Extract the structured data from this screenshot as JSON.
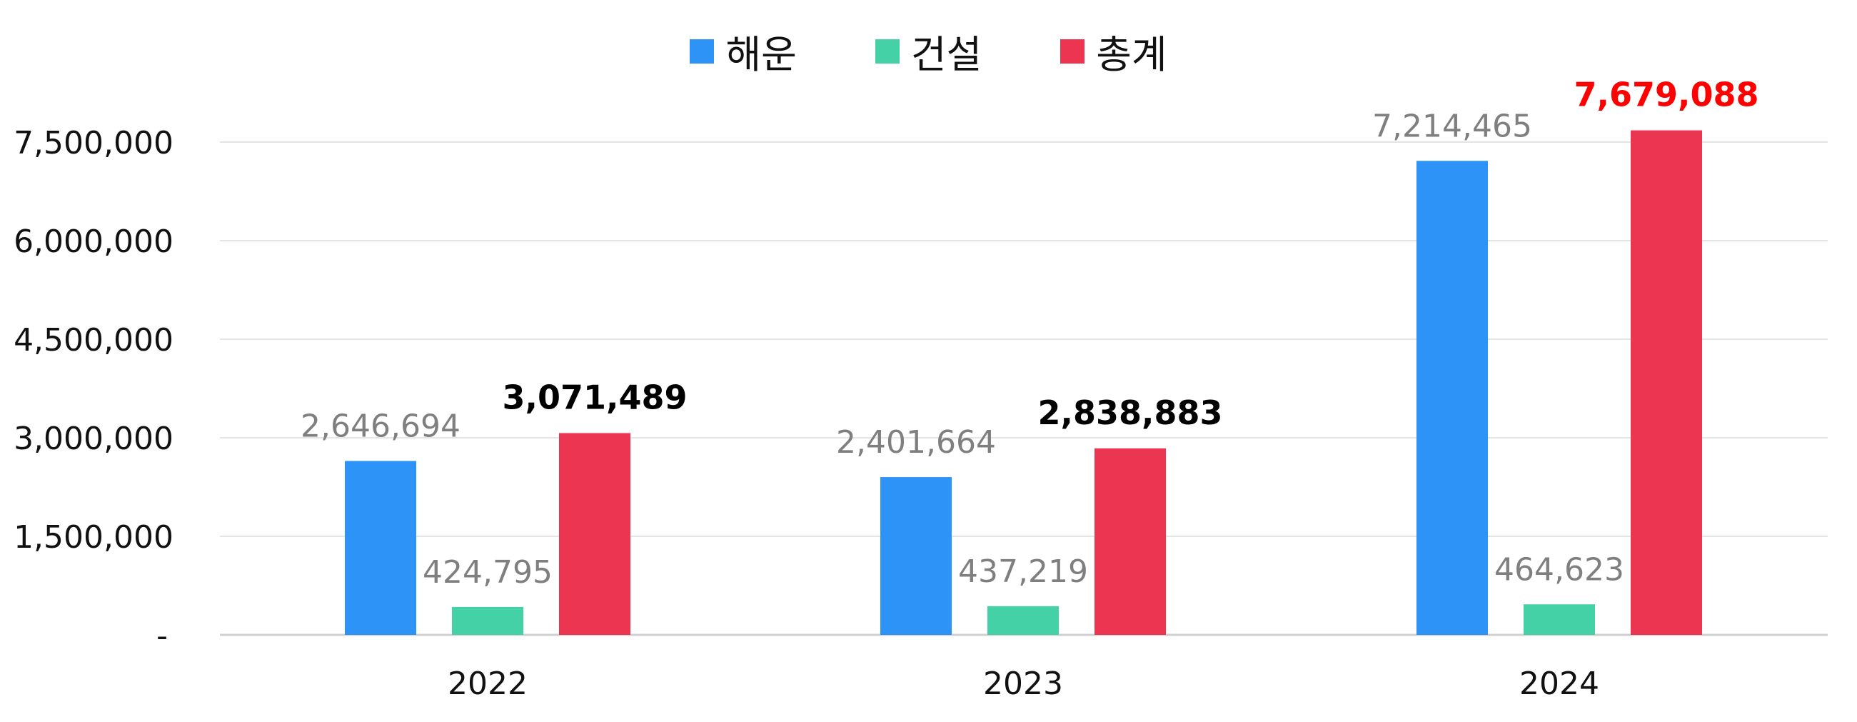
{
  "chart_data": {
    "type": "bar",
    "title": "",
    "xlabel": "",
    "ylabel": "",
    "categories": [
      "2022",
      "2023",
      "2024"
    ],
    "series": [
      {
        "name": "해운",
        "color": "#2E93F6",
        "values": [
          2646694,
          2401664,
          7214465
        ],
        "labels": [
          "2,646,694",
          "2,401,664",
          "7,214,465"
        ]
      },
      {
        "name": "건설",
        "color": "#45D1A6",
        "values": [
          424795,
          437219,
          464623
        ],
        "labels": [
          "424,795",
          "437,219",
          "464,623"
        ]
      },
      {
        "name": "총계",
        "color": "#EC3550",
        "values": [
          3071489,
          2838883,
          7679088
        ],
        "labels": [
          "3,071,489",
          "2,838,883",
          "7,679,088"
        ]
      }
    ],
    "ylim": [
      0,
      7500000
    ],
    "yticks": [
      0,
      1500000,
      3000000,
      4500000,
      6000000,
      7500000
    ],
    "ytick_labels": [
      "-",
      "1,500,000",
      "3,000,000",
      "4,500,000",
      "6,000,000",
      "7,500,000"
    ],
    "grid": true,
    "legend_position": "top-center",
    "label_colors": {
      "default": "#7F7F7F",
      "total": "#000000",
      "total_highlight": "#FF0000"
    }
  }
}
